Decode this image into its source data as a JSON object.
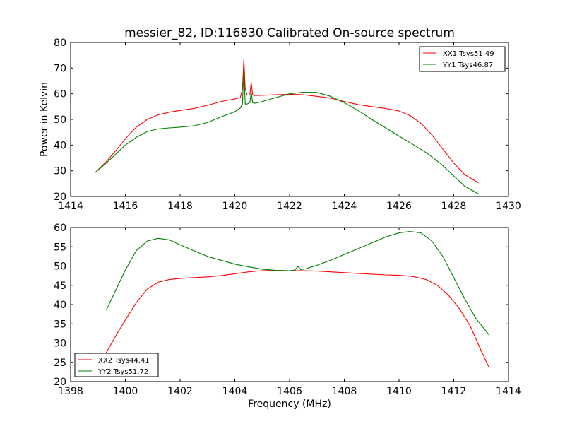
{
  "chart_data": [
    {
      "type": "line",
      "title": "messier_82, ID:116830 Calibrated On-source spectrum",
      "xlabel": "",
      "ylabel": "Power in Kelvin",
      "xlim": [
        1414,
        1430
      ],
      "ylim": [
        20,
        80
      ],
      "xticks": [
        1414,
        1416,
        1418,
        1420,
        1422,
        1424,
        1426,
        1428,
        1430
      ],
      "yticks": [
        20,
        30,
        40,
        50,
        60,
        70,
        80
      ],
      "legend_position": "upper right",
      "series": [
        {
          "name": "XX1 Tsys51.49",
          "color": "#ff0000",
          "x": [
            1414.9,
            1415.3,
            1415.7,
            1416.0,
            1416.4,
            1416.8,
            1417.2,
            1417.6,
            1418.0,
            1418.5,
            1419.0,
            1419.5,
            1420.0,
            1420.2,
            1420.28,
            1420.33,
            1420.38,
            1420.45,
            1420.55,
            1420.6,
            1420.65,
            1420.75,
            1421.0,
            1421.5,
            1422.0,
            1422.5,
            1423.0,
            1423.5,
            1424.0,
            1424.5,
            1425.0,
            1425.5,
            1426.0,
            1426.4,
            1426.8,
            1427.2,
            1427.6,
            1428.0,
            1428.4,
            1428.9
          ],
          "y": [
            29.3,
            33.5,
            38.5,
            42.5,
            47.0,
            50.0,
            51.8,
            52.8,
            53.5,
            54.3,
            55.5,
            57.0,
            58.0,
            58.5,
            62.0,
            73.5,
            62.0,
            59.5,
            59.5,
            64.5,
            59.5,
            59.3,
            59.4,
            59.6,
            59.8,
            59.6,
            59.0,
            58.3,
            57.0,
            55.8,
            55.0,
            54.3,
            53.3,
            51.5,
            48.5,
            44.0,
            38.5,
            33.0,
            28.5,
            25.3
          ]
        },
        {
          "name": "YY1 Tsys46.87",
          "color": "#008000",
          "x": [
            1414.9,
            1415.3,
            1415.7,
            1416.0,
            1416.4,
            1416.8,
            1417.2,
            1417.6,
            1418.0,
            1418.5,
            1419.0,
            1419.5,
            1420.0,
            1420.2,
            1420.28,
            1420.33,
            1420.38,
            1420.45,
            1420.55,
            1420.6,
            1420.65,
            1420.75,
            1421.0,
            1421.5,
            1422.0,
            1422.5,
            1423.0,
            1423.5,
            1424.0,
            1424.5,
            1425.0,
            1425.5,
            1426.0,
            1426.5,
            1427.0,
            1427.5,
            1428.0,
            1428.4,
            1428.9
          ],
          "y": [
            29.3,
            33.0,
            37.0,
            40.0,
            43.0,
            45.3,
            46.3,
            46.7,
            47.0,
            47.5,
            48.8,
            51.0,
            53.0,
            54.5,
            56.0,
            70.0,
            56.0,
            56.0,
            56.5,
            60.5,
            56.5,
            56.3,
            57.0,
            58.5,
            60.0,
            60.6,
            60.5,
            59.0,
            56.5,
            53.5,
            50.0,
            46.8,
            43.5,
            40.3,
            37.0,
            33.0,
            28.0,
            24.0,
            21.0
          ]
        }
      ]
    },
    {
      "type": "line",
      "title": "",
      "xlabel": "Frequency (MHz)",
      "ylabel": "",
      "xlim": [
        1398,
        1414
      ],
      "ylim": [
        20,
        60
      ],
      "xticks": [
        1398,
        1400,
        1402,
        1404,
        1406,
        1408,
        1410,
        1412,
        1414
      ],
      "yticks": [
        20,
        25,
        30,
        35,
        40,
        45,
        50,
        55,
        60
      ],
      "legend_position": "lower left",
      "series": [
        {
          "name": "XX2 Tsys44.41",
          "color": "#ff0000",
          "x": [
            1399.3,
            1399.7,
            1400.0,
            1400.4,
            1400.8,
            1401.2,
            1401.6,
            1402.0,
            1402.5,
            1403.0,
            1403.5,
            1404.0,
            1404.5,
            1405.0,
            1405.5,
            1406.0,
            1406.5,
            1407.0,
            1407.5,
            1408.0,
            1408.5,
            1409.0,
            1409.5,
            1410.0,
            1410.5,
            1411.0,
            1411.4,
            1411.8,
            1412.2,
            1412.6,
            1413.0,
            1413.3
          ],
          "y": [
            27.5,
            32.5,
            36.0,
            40.5,
            44.0,
            45.8,
            46.5,
            46.8,
            47.0,
            47.2,
            47.5,
            48.0,
            48.5,
            48.8,
            48.9,
            48.8,
            48.8,
            48.7,
            48.5,
            48.3,
            48.1,
            47.9,
            47.7,
            47.6,
            47.3,
            46.5,
            45.0,
            42.5,
            39.0,
            34.5,
            28.0,
            23.5
          ]
        },
        {
          "name": "YY2 Tsys51.72",
          "color": "#008000",
          "x": [
            1399.3,
            1399.6,
            1400.0,
            1400.4,
            1400.8,
            1401.2,
            1401.6,
            1402.0,
            1402.5,
            1403.0,
            1403.5,
            1404.0,
            1404.5,
            1405.0,
            1405.5,
            1406.0,
            1406.2,
            1406.3,
            1406.4,
            1406.6,
            1407.0,
            1407.5,
            1408.0,
            1408.5,
            1409.0,
            1409.5,
            1410.0,
            1410.4,
            1410.8,
            1411.2,
            1411.6,
            1412.0,
            1412.4,
            1412.8,
            1413.3
          ],
          "y": [
            38.5,
            43.0,
            49.0,
            54.0,
            56.5,
            57.2,
            56.8,
            55.5,
            54.0,
            52.5,
            51.5,
            50.5,
            49.8,
            49.2,
            48.9,
            48.8,
            49.0,
            49.9,
            49.1,
            49.3,
            50.2,
            51.5,
            53.0,
            54.5,
            56.0,
            57.5,
            58.6,
            59.0,
            58.6,
            56.5,
            52.5,
            47.0,
            41.5,
            36.5,
            32.0
          ]
        }
      ]
    }
  ]
}
